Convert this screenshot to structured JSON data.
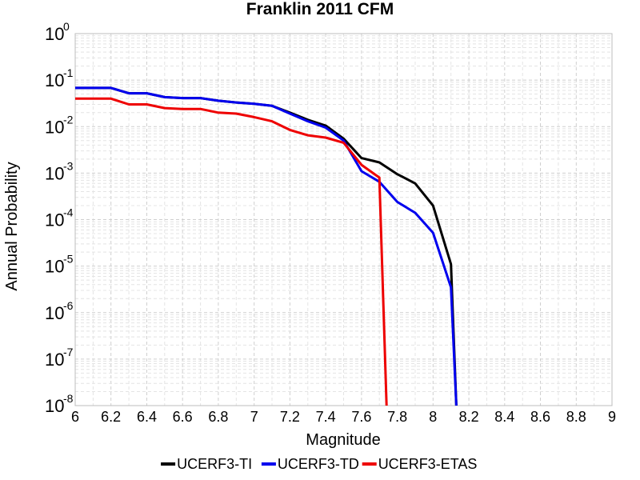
{
  "chart_data": {
    "type": "line",
    "title": "Franklin 2011 CFM",
    "xlabel": "Magnitude",
    "ylabel": "Annual Probability",
    "xlim": [
      6,
      9
    ],
    "ylim": [
      1e-08,
      1
    ],
    "yscale": "log",
    "grid": true,
    "legend_position": "bottom",
    "x_ticks": [
      "6",
      "6.2",
      "6.4",
      "6.6",
      "6.8",
      "7",
      "7.2",
      "7.4",
      "7.6",
      "7.8",
      "8",
      "8.2",
      "8.4",
      "8.6",
      "8.8",
      "9"
    ],
    "y_ticks": [
      {
        "base": "10",
        "exp": "0"
      },
      {
        "base": "10",
        "exp": "-1"
      },
      {
        "base": "10",
        "exp": "-2"
      },
      {
        "base": "10",
        "exp": "-3"
      },
      {
        "base": "10",
        "exp": "-4"
      },
      {
        "base": "10",
        "exp": "-5"
      },
      {
        "base": "10",
        "exp": "-6"
      },
      {
        "base": "10",
        "exp": "-7"
      },
      {
        "base": "10",
        "exp": "-8"
      }
    ],
    "series": [
      {
        "name": "UCERF3-TI",
        "color": "#000000",
        "points": [
          [
            6.0,
            0.068
          ],
          [
            6.1,
            0.068
          ],
          [
            6.2,
            0.068
          ],
          [
            6.3,
            0.052
          ],
          [
            6.4,
            0.052
          ],
          [
            6.5,
            0.043
          ],
          [
            6.6,
            0.041
          ],
          [
            6.7,
            0.041
          ],
          [
            6.8,
            0.036
          ],
          [
            6.9,
            0.033
          ],
          [
            7.0,
            0.031
          ],
          [
            7.1,
            0.028
          ],
          [
            7.2,
            0.02
          ],
          [
            7.3,
            0.014
          ],
          [
            7.4,
            0.0105
          ],
          [
            7.5,
            0.0055
          ],
          [
            7.6,
            0.0021
          ],
          [
            7.7,
            0.0017
          ],
          [
            7.8,
            0.00095
          ],
          [
            7.9,
            0.0006
          ],
          [
            8.0,
            0.0002
          ],
          [
            8.1,
            1.1e-05
          ],
          [
            8.13,
            1e-08
          ]
        ]
      },
      {
        "name": "UCERF3-TD",
        "color": "#0000ee",
        "points": [
          [
            6.0,
            0.068
          ],
          [
            6.1,
            0.068
          ],
          [
            6.2,
            0.068
          ],
          [
            6.3,
            0.052
          ],
          [
            6.4,
            0.052
          ],
          [
            6.5,
            0.043
          ],
          [
            6.6,
            0.041
          ],
          [
            6.7,
            0.041
          ],
          [
            6.8,
            0.036
          ],
          [
            6.9,
            0.033
          ],
          [
            7.0,
            0.031
          ],
          [
            7.1,
            0.028
          ],
          [
            7.2,
            0.019
          ],
          [
            7.3,
            0.013
          ],
          [
            7.4,
            0.0095
          ],
          [
            7.5,
            0.005
          ],
          [
            7.6,
            0.0011
          ],
          [
            7.7,
            0.00065
          ],
          [
            7.8,
            0.00024
          ],
          [
            7.9,
            0.00014
          ],
          [
            8.0,
            5.2e-05
          ],
          [
            8.1,
            3.5e-06
          ],
          [
            8.13,
            1e-08
          ]
        ]
      },
      {
        "name": "UCERF3-ETAS",
        "color": "#ee0000",
        "points": [
          [
            6.0,
            0.04
          ],
          [
            6.1,
            0.04
          ],
          [
            6.2,
            0.04
          ],
          [
            6.3,
            0.03
          ],
          [
            6.4,
            0.03
          ],
          [
            6.5,
            0.025
          ],
          [
            6.6,
            0.024
          ],
          [
            6.7,
            0.024
          ],
          [
            6.8,
            0.02
          ],
          [
            6.9,
            0.019
          ],
          [
            7.0,
            0.016
          ],
          [
            7.1,
            0.013
          ],
          [
            7.2,
            0.0085
          ],
          [
            7.3,
            0.0065
          ],
          [
            7.4,
            0.0058
          ],
          [
            7.5,
            0.0045
          ],
          [
            7.6,
            0.0015
          ],
          [
            7.7,
            0.0008
          ],
          [
            7.74,
            1e-08
          ]
        ]
      }
    ]
  }
}
